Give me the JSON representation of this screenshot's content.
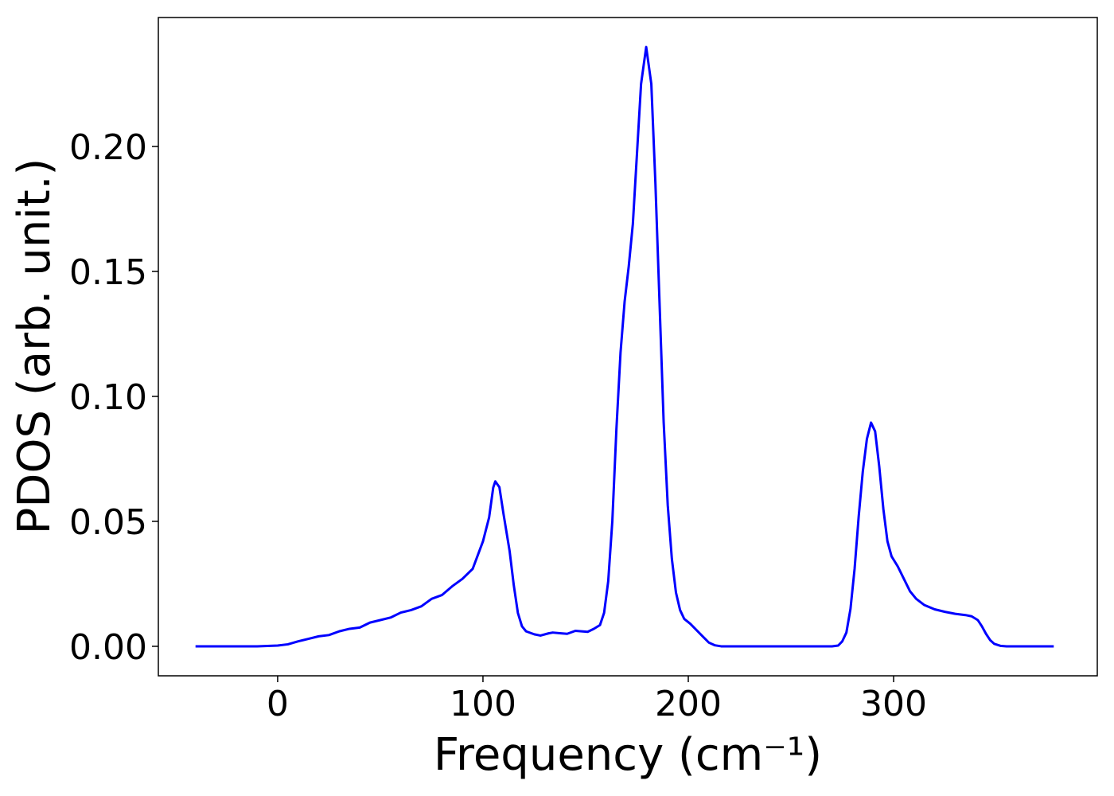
{
  "chart_data": {
    "type": "line",
    "xlabel": "Frequency (cm⁻¹)",
    "ylabel": "PDOS (arb. unit.)",
    "xlim": [
      -58.1,
      399.2
    ],
    "ylim": [
      -0.0118,
      0.2516
    ],
    "xticks": [
      0,
      100,
      200,
      300
    ],
    "yticks": [
      {
        "value": 0,
        "label": "0.00"
      },
      {
        "value": 0.05,
        "label": "0.05"
      },
      {
        "value": 0.1,
        "label": "0.10"
      },
      {
        "value": 0.15,
        "label": "0.15"
      },
      {
        "value": 0.2,
        "label": "0.20"
      }
    ],
    "x": [
      -40,
      -20,
      -10,
      0,
      5,
      10,
      15,
      20,
      25,
      30,
      35,
      40,
      45,
      50,
      55,
      60,
      65,
      70,
      75,
      80,
      85,
      90,
      95,
      100,
      103,
      105,
      106,
      108,
      110,
      113,
      115,
      117,
      119,
      121,
      125,
      128,
      132,
      134,
      138,
      141,
      145,
      148,
      151,
      154,
      157,
      159,
      161,
      163,
      165,
      167,
      169,
      171,
      173,
      175,
      177,
      179.5,
      182,
      184,
      186,
      188,
      190,
      192,
      194,
      196,
      198,
      201,
      204,
      207,
      210,
      213,
      216,
      270,
      273,
      275,
      277,
      279,
      281,
      283,
      285,
      287,
      289,
      291,
      293,
      295,
      297,
      299,
      302,
      305,
      308,
      311,
      315,
      320,
      325,
      330,
      335,
      338,
      341,
      343,
      345,
      347,
      349,
      352,
      355,
      378
    ],
    "series": [
      {
        "name": "PDOS",
        "color": "#0000ff",
        "values": [
          0,
          0,
          0,
          0.0003,
          0.0008,
          0.002,
          0.003,
          0.004,
          0.0045,
          0.006,
          0.007,
          0.0075,
          0.0095,
          0.0105,
          0.0115,
          0.0135,
          0.0145,
          0.016,
          0.019,
          0.0205,
          0.024,
          0.027,
          0.031,
          0.042,
          0.0516,
          0.0635,
          0.066,
          0.0637,
          0.053,
          0.038,
          0.0245,
          0.0134,
          0.008,
          0.006,
          0.0048,
          0.0043,
          0.0052,
          0.0055,
          0.0052,
          0.005,
          0.0062,
          0.006,
          0.0058,
          0.007,
          0.0085,
          0.0134,
          0.026,
          0.05,
          0.087,
          0.1175,
          0.138,
          0.152,
          0.169,
          0.197,
          0.225,
          0.2398,
          0.225,
          0.185,
          0.1375,
          0.0898,
          0.0564,
          0.035,
          0.0215,
          0.0145,
          0.011,
          0.009,
          0.0065,
          0.004,
          0.0015,
          0.0004,
          0,
          0,
          0.0003,
          0.002,
          0.0055,
          0.015,
          0.031,
          0.052,
          0.07,
          0.083,
          0.0895,
          0.086,
          0.072,
          0.055,
          0.042,
          0.036,
          0.032,
          0.027,
          0.022,
          0.019,
          0.0165,
          0.0148,
          0.0138,
          0.013,
          0.0125,
          0.012,
          0.0105,
          0.008,
          0.005,
          0.0025,
          0.001,
          0.0002,
          0,
          0
        ]
      }
    ]
  }
}
